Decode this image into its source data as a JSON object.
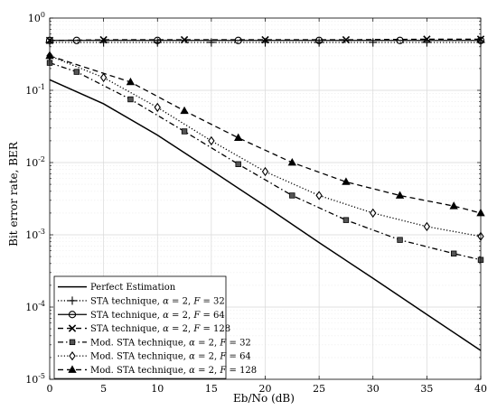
{
  "chart_data": {
    "type": "line",
    "title": "",
    "xlabel": "Eb/No (dB)",
    "ylabel": "Bit error rate, BER",
    "xlim": [
      0,
      40
    ],
    "ylim": [
      1e-05,
      1
    ],
    "yscale": "log",
    "grid": true,
    "minor_grid": true,
    "legend_position": "bottom-left",
    "x_ticks": [
      "0",
      "5",
      "10",
      "15",
      "20",
      "25",
      "30",
      "35",
      "40"
    ],
    "y_ticks": [
      {
        "base": "10",
        "exp": "0"
      },
      {
        "base": "10",
        "exp": "-1"
      },
      {
        "base": "10",
        "exp": "-2"
      },
      {
        "base": "10",
        "exp": "-3"
      },
      {
        "base": "10",
        "exp": "-4"
      },
      {
        "base": "10",
        "exp": "-5"
      }
    ],
    "series": [
      {
        "name": "Perfect Estimation",
        "legend_label": {
          "pre": "Perfect Estimation",
          "greek": "",
          "mid": "",
          "F": "",
          "val": ""
        },
        "marker": "none",
        "dash": "solid",
        "x": [
          0,
          5,
          10,
          15,
          20,
          25,
          30,
          35,
          40
        ],
        "y": [
          0.14,
          0.065,
          0.024,
          0.0078,
          0.0025,
          0.00078,
          0.00025,
          7.9e-05,
          2.5e-05
        ]
      },
      {
        "name": "STA technique, α = 2, F = 32",
        "legend_label": {
          "pre": "STA technique, ",
          "greek": "α",
          "mid": " = 2, ",
          "F": "F",
          "val": " = 32"
        },
        "marker": "plus",
        "dash": "dotted",
        "x": [
          0,
          5,
          10,
          15,
          20,
          25,
          30,
          35,
          40
        ],
        "y": [
          0.46,
          0.46,
          0.46,
          0.46,
          0.46,
          0.46,
          0.46,
          0.46,
          0.46
        ]
      },
      {
        "name": "STA technique, α = 2, F = 64",
        "legend_label": {
          "pre": "STA technique, ",
          "greek": "α",
          "mid": " = 2, ",
          "F": "F",
          "val": " = 64"
        },
        "marker": "circle",
        "dash": "solid",
        "x": [
          0,
          2.5,
          10,
          17.5,
          25,
          32.5,
          40
        ],
        "y": [
          0.49,
          0.49,
          0.49,
          0.49,
          0.49,
          0.49,
          0.49
        ]
      },
      {
        "name": "STA technique, α = 2, F = 128",
        "legend_label": {
          "pre": "STA technique, ",
          "greek": "α",
          "mid": " = 2, ",
          "F": "F",
          "val": " = 128"
        },
        "marker": "x",
        "dash": "dashed",
        "x": [
          0,
          5,
          12.5,
          20,
          27.5,
          35,
          40
        ],
        "y": [
          0.49,
          0.5,
          0.5,
          0.5,
          0.5,
          0.51,
          0.51
        ]
      },
      {
        "name": "Mod. STA technique, α = 2, F = 32",
        "legend_label": {
          "pre": "Mod. STA technique, ",
          "greek": "α",
          "mid": " = 2, ",
          "F": "F",
          "val": " = 32"
        },
        "marker": "square",
        "dash": "dashdot",
        "x": [
          0,
          2.5,
          7.5,
          12.5,
          17.5,
          22.5,
          27.5,
          32.5,
          37.5,
          40
        ],
        "y": [
          0.24,
          0.18,
          0.075,
          0.027,
          0.0095,
          0.0035,
          0.0016,
          0.00085,
          0.00055,
          0.00045
        ]
      },
      {
        "name": "Mod. STA technique, α = 2, F = 64",
        "legend_label": {
          "pre": "Mod. STA technique, ",
          "greek": "α",
          "mid": " = 2, ",
          "F": "F",
          "val": " = 64"
        },
        "marker": "diamond",
        "dash": "dotted",
        "x": [
          0,
          5,
          10,
          15,
          20,
          25,
          30,
          35,
          40
        ],
        "y": [
          0.3,
          0.15,
          0.058,
          0.02,
          0.0075,
          0.0035,
          0.002,
          0.0013,
          0.00095
        ]
      },
      {
        "name": "Mod. STA technique, α = 2, F = 128",
        "legend_label": {
          "pre": "Mod. STA technique, ",
          "greek": "α",
          "mid": " = 2, ",
          "F": "F",
          "val": " = 128"
        },
        "marker": "triangle",
        "dash": "dashed",
        "x": [
          0,
          7.5,
          12.5,
          17.5,
          22.5,
          27.5,
          32.5,
          37.5,
          40
        ],
        "y": [
          0.3,
          0.13,
          0.052,
          0.022,
          0.01,
          0.0054,
          0.0035,
          0.0025,
          0.002
        ]
      }
    ]
  }
}
